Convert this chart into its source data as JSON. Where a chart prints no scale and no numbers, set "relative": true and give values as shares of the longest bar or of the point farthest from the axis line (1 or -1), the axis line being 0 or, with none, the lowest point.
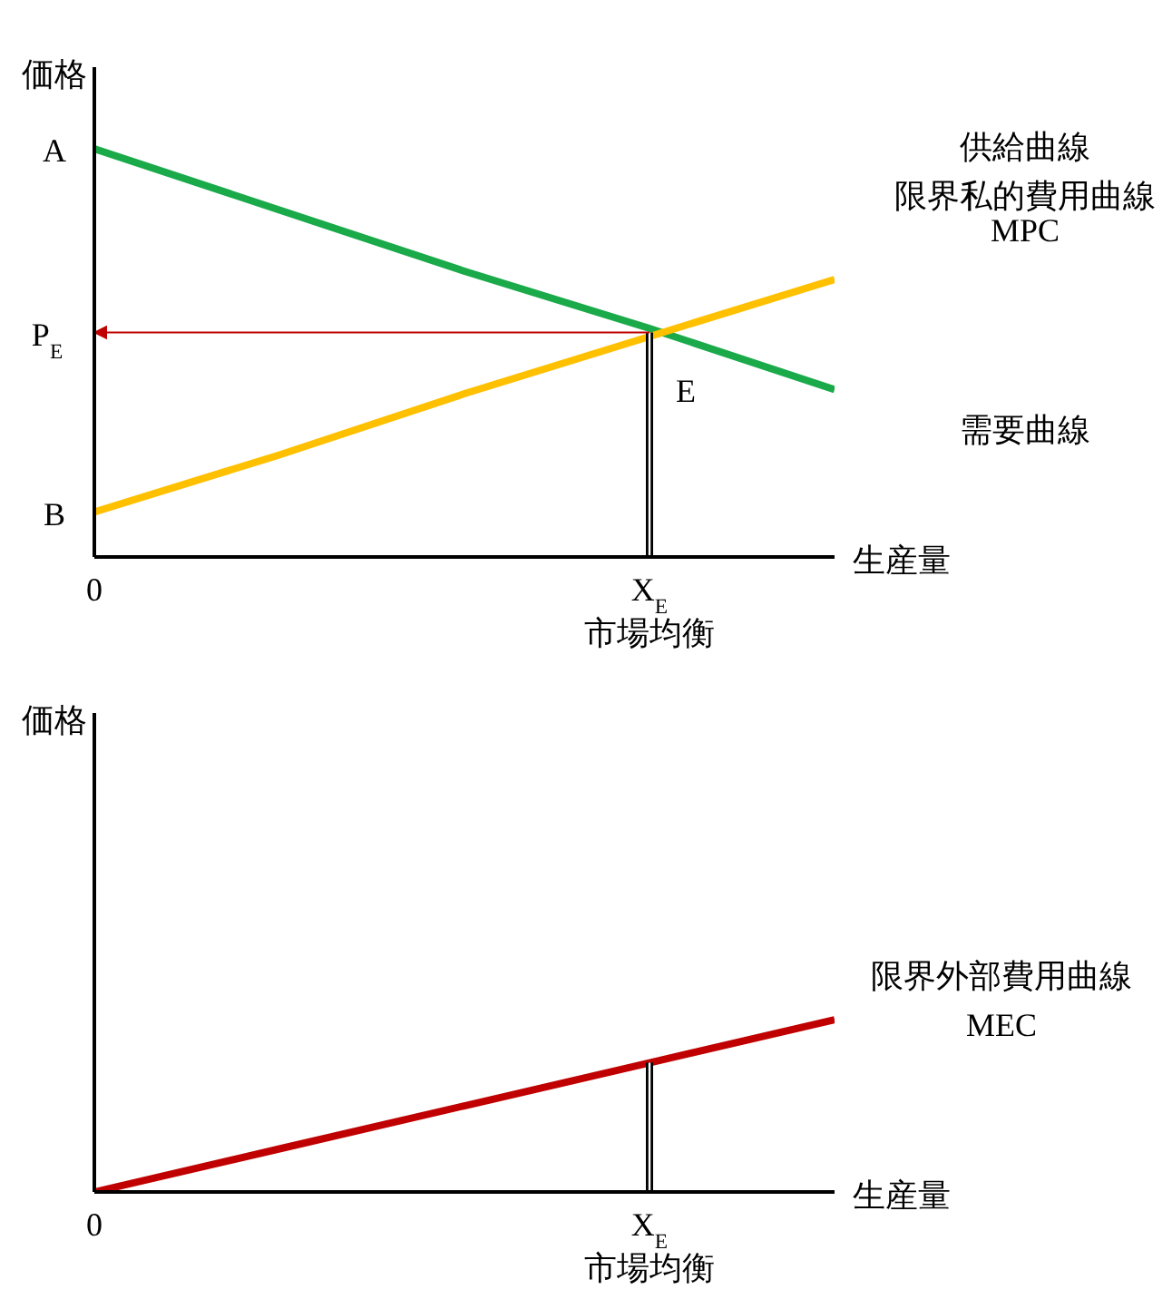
{
  "chart_data": [
    {
      "type": "line",
      "relative": true,
      "ylabel": "価格",
      "xlabel": "生産量",
      "categories": [
        "0",
        null,
        null,
        "X$_{E}$\n市場均衡",
        null
      ],
      "series": [
        {
          "name": "需要曲線",
          "color": "#1aaa4a",
          "values": [
            1,
            0.85,
            0.7,
            0.56,
            0.41
          ]
        },
        {
          "name": "MPC",
          "color": "#ffc000",
          "values": [
            0.11,
            0.25,
            0.4,
            0.54,
            0.68
          ]
        }
      ],
      "ref_lines": [
        {
          "axis": "x",
          "value": "X$_{E}$\n市場均衡",
          "color": "#000000"
        },
        {
          "axis": "y",
          "value": 0.55,
          "label": "P$_{E}$",
          "color": "#c00000"
        }
      ],
      "annotations": [
        "供給曲線",
        "限界私的費用曲線",
        {
          "text": "A",
          "x": "0",
          "y": 1
        },
        {
          "text": "B",
          "x": "0",
          "y": 0.11
        },
        {
          "text": "E",
          "x": "X$_{E}$\n市場均衡",
          "y": 0.55
        }
      ]
    },
    {
      "type": "line",
      "relative": true,
      "ylabel": "価格",
      "xlabel": "生産量",
      "categories": [
        "0",
        null,
        null,
        "X$_{E}$\n市場均衡",
        null
      ],
      "series": [
        {
          "name": "限界外部費用曲線\nMEC",
          "color": "#c00000",
          "values": [
            0,
            0.25,
            0.5,
            0.75,
            1
          ]
        }
      ],
      "ref_lines": [
        {
          "axis": "x",
          "value": "X$_{E}$\n市場均衡",
          "color": "#000000"
        }
      ]
    }
  ]
}
